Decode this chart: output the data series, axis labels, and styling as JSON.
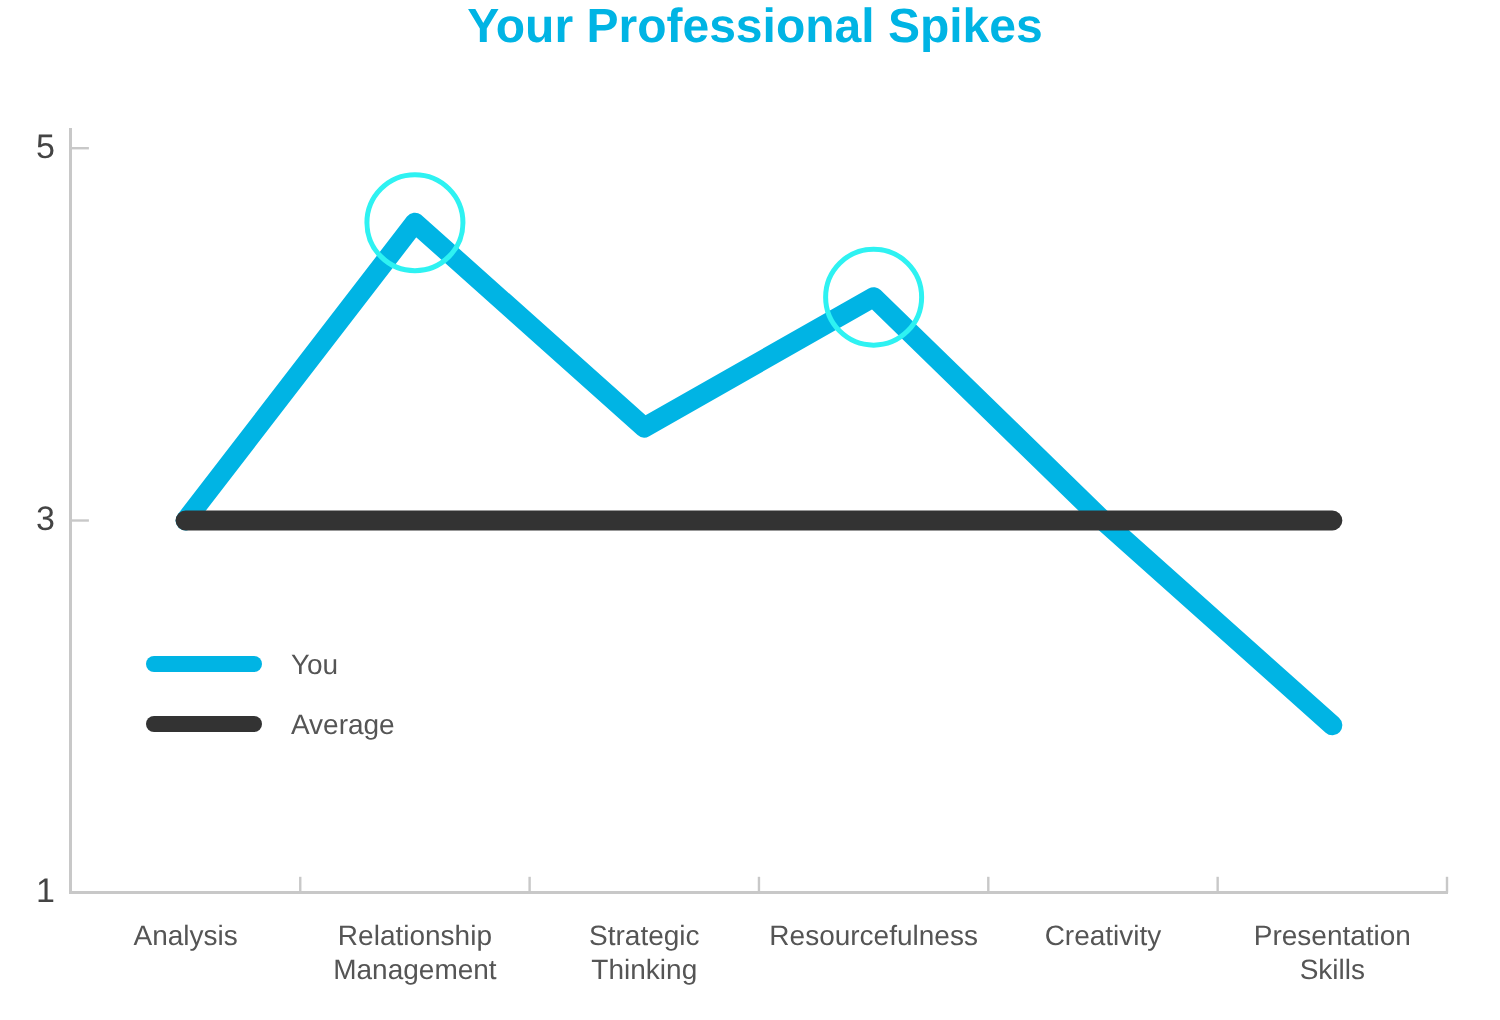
{
  "chart_data": {
    "type": "line",
    "title": "Your Professional Spikes",
    "categories": [
      "Analysis",
      "Relationship Management",
      "Strategic Thinking",
      "Resourcefulness",
      "Creativity",
      "Presentation Skills"
    ],
    "series": [
      {
        "name": "You",
        "color": "#00b4e4",
        "values": [
          3,
          4.6,
          3.5,
          4.2,
          3,
          1.9
        ]
      },
      {
        "name": "Average",
        "color": "#333333",
        "values": [
          3,
          3,
          3,
          3,
          3,
          3
        ]
      },
      {
        "type": "scatter",
        "color": "#2ef2f2",
        "marker": "circle",
        "values": [
          null,
          4.6,
          null,
          4.2,
          null,
          null
        ]
      }
    ],
    "ylim": [
      1,
      5.1
    ],
    "yticks": [
      1,
      3,
      5
    ],
    "marker": "none",
    "legend": "bottom left"
  }
}
